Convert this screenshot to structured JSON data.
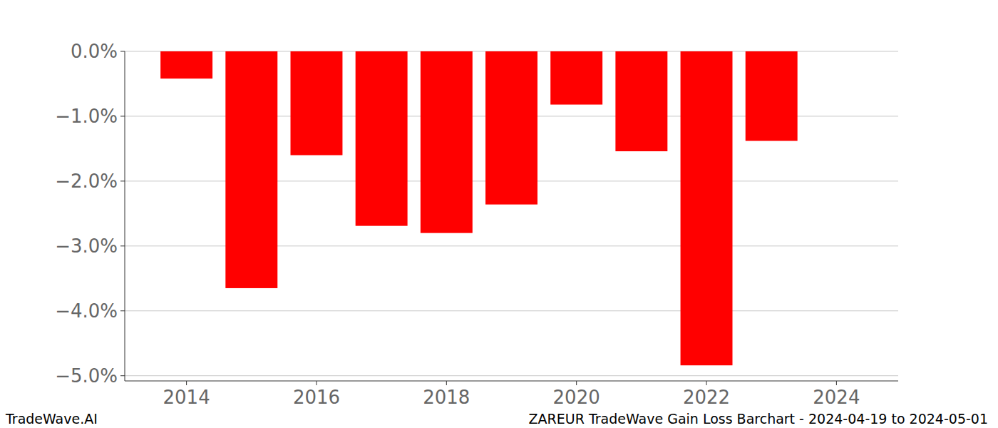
{
  "chart_data": {
    "type": "bar",
    "title": "ZAREUR TradeWave Gain Loss Barchart - 2024-04-19 to 2024-05-01",
    "annotations": [
      "TradeWave.AI"
    ],
    "x": [
      2014,
      2015,
      2016,
      2017,
      2018,
      2019,
      2020,
      2021,
      2022,
      2023
    ],
    "values": [
      -0.42,
      -3.65,
      -1.6,
      -2.69,
      -2.8,
      -2.36,
      -0.82,
      -1.54,
      -4.84,
      -1.38
    ],
    "color": "#ff0000",
    "xlim": [
      2013.05,
      2024.95
    ],
    "xticks": [
      2014,
      2016,
      2018,
      2020,
      2022,
      2024
    ],
    "ylim": [
      -5.08,
      0
    ],
    "yticks": [
      {
        "value": 0,
        "label": "0.0%"
      },
      {
        "value": -1,
        "label": "−1.0%"
      },
      {
        "value": -2,
        "label": "−2.0%"
      },
      {
        "value": -3,
        "label": "−3.0%"
      },
      {
        "value": -4,
        "label": "−4.0%"
      },
      {
        "value": -5,
        "label": "−5.0%"
      }
    ],
    "grid": true
  }
}
